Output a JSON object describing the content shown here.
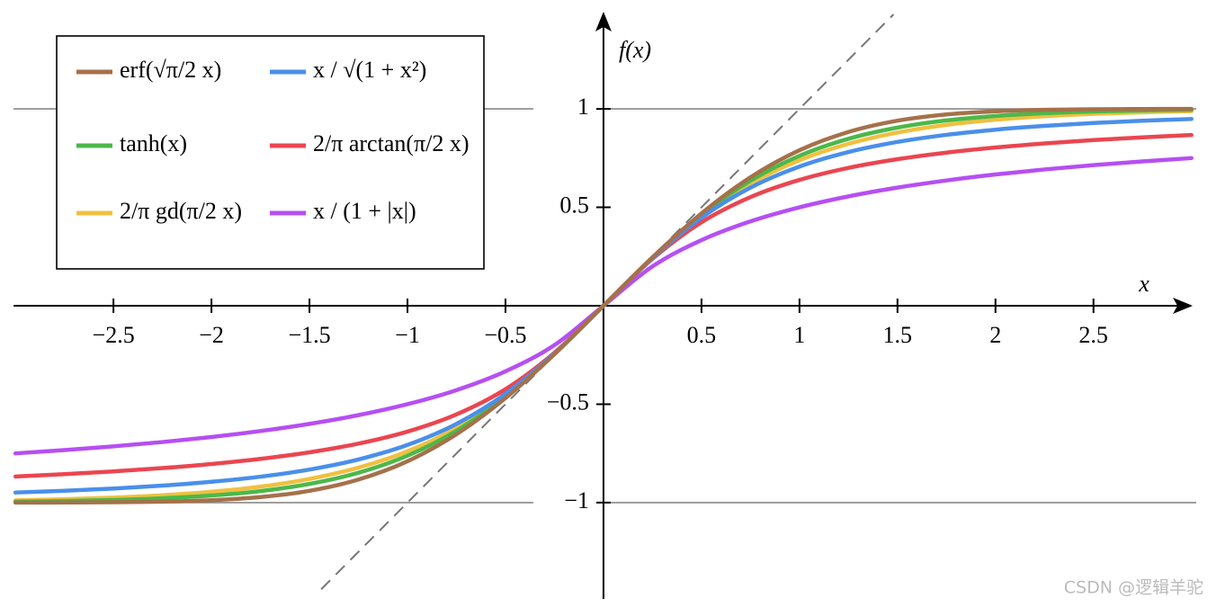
{
  "chart_data": {
    "type": "line",
    "x_label": "x",
    "y_label": "f(x)",
    "x": [
      -3,
      -2.75,
      -2.5,
      -2.25,
      -2,
      -1.75,
      -1.5,
      -1.25,
      -1,
      -0.75,
      -0.5,
      -0.25,
      0,
      0.25,
      0.5,
      0.75,
      1,
      1.25,
      1.5,
      1.75,
      2,
      2.25,
      2.5,
      2.75,
      3
    ],
    "series": [
      {
        "name": "erf(√π/2 x)",
        "color": "#a5714a",
        "values": [
          -0.9998,
          -0.9994,
          -0.9983,
          -0.9952,
          -0.9878,
          -0.9717,
          -0.94,
          -0.8828,
          -0.79,
          -0.6527,
          -0.4691,
          -0.246,
          0,
          0.246,
          0.4691,
          0.6527,
          0.79,
          0.8828,
          0.94,
          0.9717,
          0.9878,
          0.9952,
          0.9983,
          0.9994,
          0.9998
        ]
      },
      {
        "name": "x / √(1 + x²)",
        "color": "#4a8fea",
        "values": [
          -0.9487,
          -0.9398,
          -0.9285,
          -0.9138,
          -0.8944,
          -0.8682,
          -0.8321,
          -0.7809,
          -0.7071,
          -0.6,
          -0.4472,
          -0.2425,
          0,
          0.2425,
          0.4472,
          0.6,
          0.7071,
          0.7809,
          0.8321,
          0.8682,
          0.8944,
          0.9138,
          0.9285,
          0.9398,
          0.9487
        ]
      },
      {
        "name": "tanh(x)",
        "color": "#4cb84a",
        "values": [
          -0.9951,
          -0.9919,
          -0.9866,
          -0.978,
          -0.964,
          -0.9414,
          -0.9051,
          -0.8483,
          -0.7616,
          -0.6351,
          -0.4621,
          -0.2449,
          0,
          0.2449,
          0.4621,
          0.6351,
          0.7616,
          0.8483,
          0.9051,
          0.9414,
          0.964,
          0.978,
          0.9866,
          0.9919,
          0.9951
        ]
      },
      {
        "name": "2/π arctan(π/2 x)",
        "color": "#ea4650",
        "values": [
          -0.8671,
          -0.8554,
          -0.8414,
          -0.8245,
          -0.8038,
          -0.7778,
          -0.7445,
          -0.7003,
          -0.6391,
          -0.5518,
          -0.4239,
          -0.2383,
          0,
          0.2383,
          0.4239,
          0.5518,
          0.6391,
          0.7003,
          0.7445,
          0.7778,
          0.8038,
          0.8245,
          0.8414,
          0.8554,
          0.8671
        ]
      },
      {
        "name": "2/π gd(π/2 x)",
        "color": "#f0c040",
        "values": [
          -0.9884,
          -0.9829,
          -0.9747,
          -0.9627,
          -0.945,
          -0.9189,
          -0.8796,
          -0.8223,
          -0.7393,
          -0.6197,
          -0.4553,
          -0.2438,
          0,
          0.2438,
          0.4553,
          0.6197,
          0.7393,
          0.8223,
          0.8796,
          0.9189,
          0.945,
          0.9627,
          0.9747,
          0.9829,
          0.9884
        ]
      },
      {
        "name": "x / (1 + |x|)",
        "color": "#b64ff2",
        "values": [
          -0.75,
          -0.7333,
          -0.7143,
          -0.6923,
          -0.6667,
          -0.6364,
          -0.6,
          -0.5556,
          -0.5,
          -0.4286,
          -0.3333,
          -0.2,
          0,
          0.2,
          0.3333,
          0.4286,
          0.5,
          0.5556,
          0.6,
          0.6364,
          0.6667,
          0.6923,
          0.7143,
          0.7333,
          0.75
        ]
      }
    ],
    "hlines": [
      -1,
      1
    ],
    "dashed_line": {
      "color": "#777777",
      "x": [
        -1.44,
        1.48
      ],
      "values": [
        -1.44,
        1.48
      ]
    },
    "xlim": [
      -3.01,
      3.02
    ],
    "ylim": [
      -1.48,
      1.48
    ],
    "xticks": [
      {
        "value": -2.5,
        "label": "−2.5"
      },
      {
        "value": -2,
        "label": "−2"
      },
      {
        "value": -1.5,
        "label": "−1.5"
      },
      {
        "value": -1,
        "label": "−1"
      },
      {
        "value": -0.5,
        "label": "−0.5"
      },
      0.5,
      1,
      1.5,
      2,
      2.5
    ],
    "yticks": [
      {
        "value": -1,
        "label": "−1"
      },
      {
        "value": -0.5,
        "label": "−0.5"
      },
      0.5,
      1
    ],
    "watermark": "CSDN @逻辑羊驼"
  }
}
